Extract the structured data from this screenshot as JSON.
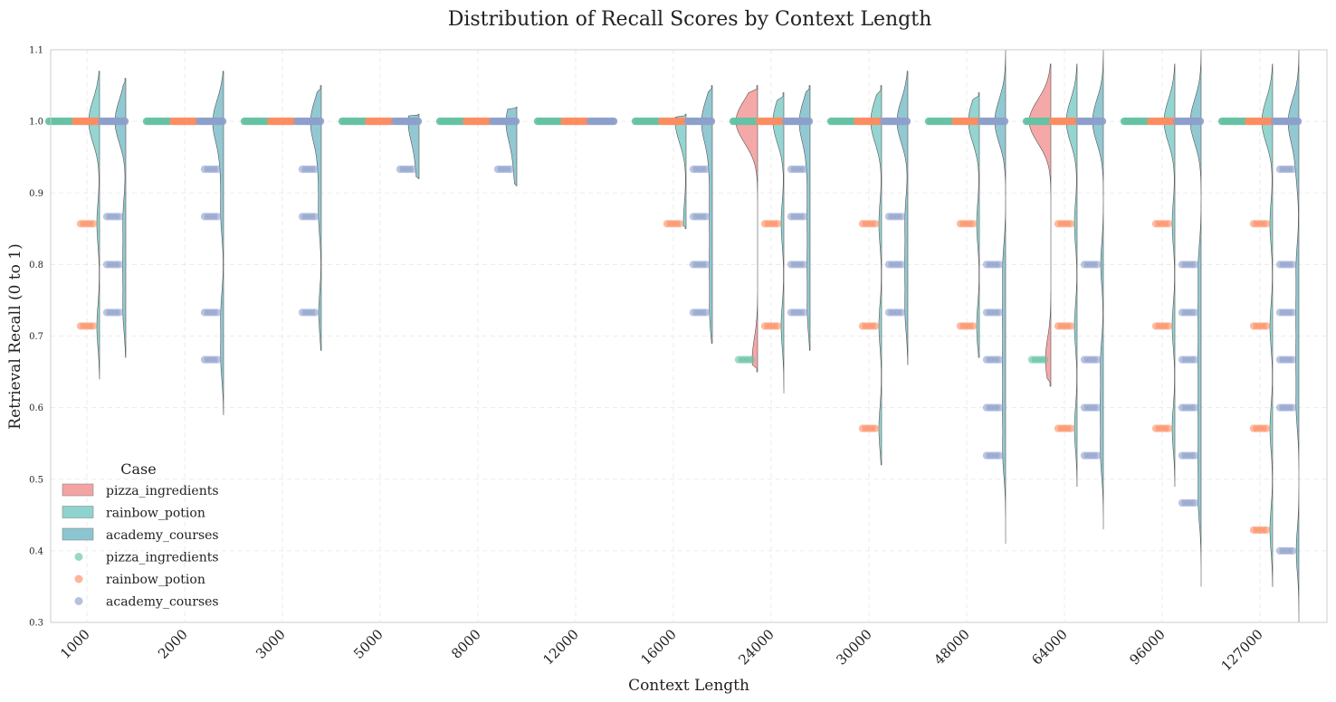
{
  "chart_data": {
    "type": "violin+strip",
    "title": "Distribution of Recall Scores by Context Length",
    "xlabel": "Context Length",
    "ylabel": "Retrieval Recall (0 to 1)",
    "ylim": [
      0.3,
      1.1
    ],
    "yticks": [
      "0.3",
      "0.4",
      "0.5",
      "0.6",
      "0.7",
      "0.8",
      "0.9",
      "1.0",
      "1.1"
    ],
    "categories": [
      "1000",
      "2000",
      "3000",
      "5000",
      "8000",
      "12000",
      "16000",
      "24000",
      "30000",
      "48000",
      "64000",
      "96000",
      "127000"
    ],
    "grid": true,
    "legend": {
      "title": "Case",
      "position": "lower-left",
      "violin_entries": [
        "pizza_ingredients",
        "rainbow_potion",
        "academy_courses"
      ],
      "point_entries": [
        "pizza_ingredients",
        "rainbow_potion",
        "academy_courses"
      ]
    },
    "colors": {
      "pizza_violin": "#f4a3a3",
      "rainbow_violin": "#8fd3cf",
      "academy_violin": "#8cc5d0",
      "pizza_points": "#66c2a5",
      "rainbow_points": "#fc8d62",
      "academy_points": "#8da0cb"
    },
    "series": [
      {
        "name": "pizza_ingredients",
        "point_values": [
          [
            1.0
          ],
          [
            1.0
          ],
          [
            1.0
          ],
          [
            1.0
          ],
          [
            1.0
          ],
          [
            1.0
          ],
          [
            1.0
          ],
          [
            1.0,
            0.667
          ],
          [
            1.0
          ],
          [
            1.0
          ],
          [
            1.0,
            0.667
          ],
          [
            1.0
          ],
          [
            1.0
          ]
        ]
      },
      {
        "name": "rainbow_potion",
        "point_values": [
          [
            1.0,
            0.857,
            0.714
          ],
          [
            1.0
          ],
          [
            1.0
          ],
          [
            1.0
          ],
          [
            1.0
          ],
          [
            1.0
          ],
          [
            1.0,
            0.857
          ],
          [
            1.0,
            0.857,
            0.714
          ],
          [
            1.0,
            0.857,
            0.714,
            0.571
          ],
          [
            1.0,
            0.857,
            0.714
          ],
          [
            1.0,
            0.857,
            0.714,
            0.571
          ],
          [
            1.0,
            0.857,
            0.714,
            0.571
          ],
          [
            1.0,
            0.857,
            0.714,
            0.571,
            0.429
          ]
        ]
      },
      {
        "name": "academy_courses",
        "point_values": [
          [
            1.0,
            0.867,
            0.8,
            0.733
          ],
          [
            1.0,
            0.933,
            0.867,
            0.733,
            0.667
          ],
          [
            1.0,
            0.933,
            0.867,
            0.733
          ],
          [
            1.0,
            0.933
          ],
          [
            1.0,
            0.933
          ],
          [
            1.0
          ],
          [
            1.0,
            0.933,
            0.867,
            0.8,
            0.733
          ],
          [
            1.0,
            0.933,
            0.867,
            0.8,
            0.733
          ],
          [
            1.0,
            0.867,
            0.8,
            0.733
          ],
          [
            1.0,
            0.8,
            0.733,
            0.667,
            0.6,
            0.533
          ],
          [
            1.0,
            0.8,
            0.667,
            0.6,
            0.533
          ],
          [
            1.0,
            0.8,
            0.733,
            0.667,
            0.6,
            0.533,
            0.467
          ],
          [
            1.0,
            0.933,
            0.8,
            0.733,
            0.667,
            0.6,
            0.4
          ]
        ]
      }
    ],
    "violin_ranges": {
      "pizza_ingredients": [
        [
          1,
          1
        ],
        [
          1,
          1
        ],
        [
          1,
          1
        ],
        [
          1,
          1
        ],
        [
          1,
          1
        ],
        [
          1,
          1
        ],
        [
          1,
          1
        ],
        [
          0.65,
          1.05
        ],
        [
          1,
          1
        ],
        [
          1,
          1
        ],
        [
          0.63,
          1.08
        ],
        [
          1,
          1
        ],
        [
          1,
          1
        ]
      ],
      "rainbow_potion": [
        [
          0.64,
          1.07
        ],
        [
          1,
          1
        ],
        [
          1,
          1
        ],
        [
          1,
          1
        ],
        [
          1,
          1
        ],
        [
          1,
          1
        ],
        [
          0.85,
          1.01
        ],
        [
          0.62,
          1.04
        ],
        [
          0.52,
          1.05
        ],
        [
          0.67,
          1.04
        ],
        [
          0.49,
          1.08
        ],
        [
          0.49,
          1.08
        ],
        [
          0.35,
          1.08
        ]
      ],
      "academy_courses": [
        [
          0.67,
          1.06
        ],
        [
          0.59,
          1.07
        ],
        [
          0.68,
          1.05
        ],
        [
          0.92,
          1.01
        ],
        [
          0.91,
          1.02
        ],
        [
          1,
          1
        ],
        [
          0.69,
          1.05
        ],
        [
          0.68,
          1.05
        ],
        [
          0.66,
          1.07
        ],
        [
          0.41,
          1.1
        ],
        [
          0.43,
          1.1
        ],
        [
          0.35,
          1.1
        ],
        [
          0.3,
          1.1
        ]
      ]
    }
  }
}
